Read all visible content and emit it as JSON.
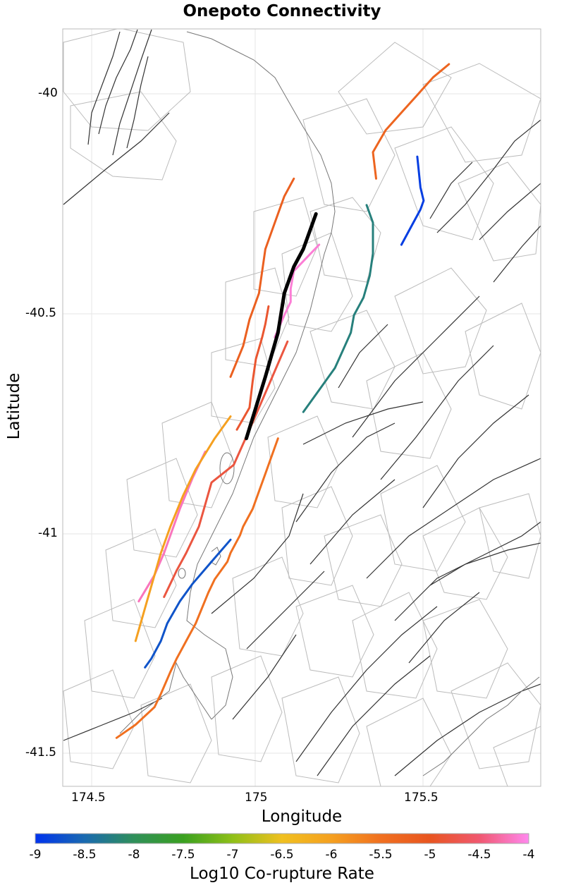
{
  "title": "Onepoto Connectivity",
  "x_axis": {
    "label": "Longitude",
    "ticks": [
      "174.5",
      "175",
      "175.5"
    ]
  },
  "y_axis": {
    "label": "Latitude",
    "ticks": [
      "-40",
      "-40.5",
      "-41",
      "-41.5"
    ]
  },
  "colorbar": {
    "label": "Log10 Co-rupture Rate",
    "ticks": [
      "-9",
      "-8.5",
      "-8",
      "-7.5",
      "-7",
      "-6.5",
      "-6",
      "-5.5",
      "-5",
      "-4.5",
      "-4"
    ],
    "range": [
      -9,
      -4
    ],
    "stops": [
      "#0033ee",
      "#1a6ab0",
      "#2f8f5a",
      "#3aa020",
      "#8fc018",
      "#f0c020",
      "#f5a020",
      "#f07020",
      "#e85520",
      "#f05870",
      "#ff88ee"
    ]
  },
  "map": {
    "lon_range": [
      174.41,
      175.92
    ],
    "lat_range": [
      -41.58,
      -39.86
    ],
    "target_color": "#000000",
    "coastline_color": "#777777",
    "fault_trace_color": "#333333",
    "fault_polygon_color": "#bbbbbb"
  },
  "chart_data": {
    "type": "map",
    "title": "Onepoto Connectivity",
    "xlabel": "Longitude",
    "ylabel": "Latitude",
    "colorbar_label": "Log10 Co-rupture Rate",
    "target_fault": "Onepoto",
    "ruptures": [
      {
        "id": "onepoto",
        "log10_rate": null,
        "path": [
          [
            175.21,
            -40.28
          ],
          [
            175.17,
            -40.36
          ],
          [
            175.14,
            -40.4
          ],
          [
            175.11,
            -40.46
          ],
          [
            175.09,
            -40.55
          ],
          [
            175.05,
            -40.65
          ],
          [
            174.99,
            -40.79
          ]
        ]
      },
      {
        "id": "a",
        "log10_rate": -5.2,
        "path": [
          [
            175.14,
            -40.2
          ],
          [
            175.11,
            -40.24
          ],
          [
            175.08,
            -40.3
          ],
          [
            175.05,
            -40.36
          ],
          [
            175.04,
            -40.41
          ],
          [
            175.03,
            -40.46
          ],
          [
            175.0,
            -40.52
          ],
          [
            174.98,
            -40.58
          ],
          [
            174.94,
            -40.65
          ]
        ]
      },
      {
        "id": "b",
        "log10_rate": -4.1,
        "path": [
          [
            175.22,
            -40.35
          ],
          [
            175.18,
            -40.38
          ],
          [
            175.14,
            -40.41
          ],
          [
            175.13,
            -40.45
          ],
          [
            175.13,
            -40.48
          ],
          [
            175.11,
            -40.51
          ],
          [
            175.08,
            -40.56
          ]
        ]
      },
      {
        "id": "c",
        "log10_rate": -4.9,
        "path": [
          [
            175.06,
            -40.49
          ],
          [
            175.05,
            -40.53
          ],
          [
            175.04,
            -40.56
          ],
          [
            175.02,
            -40.61
          ],
          [
            175.01,
            -40.66
          ],
          [
            175.0,
            -40.72
          ],
          [
            174.96,
            -40.77
          ]
        ]
      },
      {
        "id": "d",
        "log10_rate": -4.8,
        "path": [
          [
            175.12,
            -40.57
          ],
          [
            175.06,
            -40.67
          ],
          [
            175.0,
            -40.77
          ],
          [
            174.95,
            -40.85
          ],
          [
            174.88,
            -40.89
          ],
          [
            174.86,
            -40.94
          ],
          [
            174.84,
            -40.99
          ],
          [
            174.8,
            -41.05
          ],
          [
            174.77,
            -41.09
          ],
          [
            174.73,
            -41.15
          ]
        ]
      },
      {
        "id": "e",
        "log10_rate": -5.5,
        "path": [
          [
            175.09,
            -40.79
          ],
          [
            175.05,
            -40.87
          ],
          [
            175.03,
            -40.91
          ],
          [
            175.02,
            -40.93
          ],
          [
            175.01,
            -40.95
          ],
          [
            174.98,
            -40.99
          ],
          [
            174.97,
            -41.01
          ],
          [
            174.94,
            -41.05
          ],
          [
            174.93,
            -41.07
          ],
          [
            174.89,
            -41.11
          ],
          [
            174.87,
            -41.14
          ],
          [
            174.83,
            -41.21
          ],
          [
            174.8,
            -41.25
          ],
          [
            174.77,
            -41.29
          ],
          [
            174.75,
            -41.32
          ],
          [
            174.72,
            -41.37
          ],
          [
            174.7,
            -41.4
          ],
          [
            174.64,
            -41.44
          ],
          [
            174.58,
            -41.47
          ]
        ]
      },
      {
        "id": "f",
        "log10_rate": -4.2,
        "path": [
          [
            174.86,
            -40.82
          ],
          [
            174.82,
            -40.88
          ],
          [
            174.78,
            -40.95
          ],
          [
            174.73,
            -41.05
          ],
          [
            174.7,
            -41.1
          ],
          [
            174.65,
            -41.16
          ]
        ]
      },
      {
        "id": "g",
        "log10_rate": -6.0,
        "path": [
          [
            174.94,
            -40.74
          ],
          [
            174.89,
            -40.79
          ],
          [
            174.83,
            -40.86
          ],
          [
            174.79,
            -40.92
          ],
          [
            174.75,
            -40.99
          ],
          [
            174.72,
            -41.05
          ],
          [
            174.68,
            -41.15
          ],
          [
            174.64,
            -41.25
          ]
        ]
      },
      {
        "id": "h",
        "log10_rate": -8.7,
        "path": [
          [
            174.94,
            -41.02
          ],
          [
            174.88,
            -41.07
          ],
          [
            174.82,
            -41.12
          ],
          [
            174.78,
            -41.16
          ],
          [
            174.74,
            -41.21
          ],
          [
            174.72,
            -41.25
          ],
          [
            174.69,
            -41.29
          ],
          [
            174.67,
            -41.31
          ]
        ]
      },
      {
        "id": "i",
        "log10_rate": -5.3,
        "path": [
          [
            175.4,
            -40.2
          ],
          [
            175.39,
            -40.14
          ],
          [
            175.43,
            -40.09
          ],
          [
            175.48,
            -40.05
          ],
          [
            175.53,
            -40.01
          ],
          [
            175.58,
            -39.97
          ],
          [
            175.63,
            -39.94
          ]
        ]
      },
      {
        "id": "j",
        "log10_rate": -8.2,
        "path": [
          [
            175.37,
            -40.26
          ],
          [
            175.39,
            -40.3
          ],
          [
            175.39,
            -40.37
          ],
          [
            175.38,
            -40.42
          ],
          [
            175.36,
            -40.47
          ],
          [
            175.33,
            -40.51
          ],
          [
            175.32,
            -40.55
          ],
          [
            175.27,
            -40.63
          ],
          [
            175.22,
            -40.68
          ],
          [
            175.17,
            -40.73
          ]
        ]
      },
      {
        "id": "k",
        "log10_rate": -8.9,
        "path": [
          [
            175.53,
            -40.15
          ],
          [
            175.54,
            -40.22
          ],
          [
            175.55,
            -40.25
          ],
          [
            175.54,
            -40.27
          ],
          [
            175.51,
            -40.31
          ],
          [
            175.48,
            -40.35
          ]
        ]
      }
    ]
  }
}
